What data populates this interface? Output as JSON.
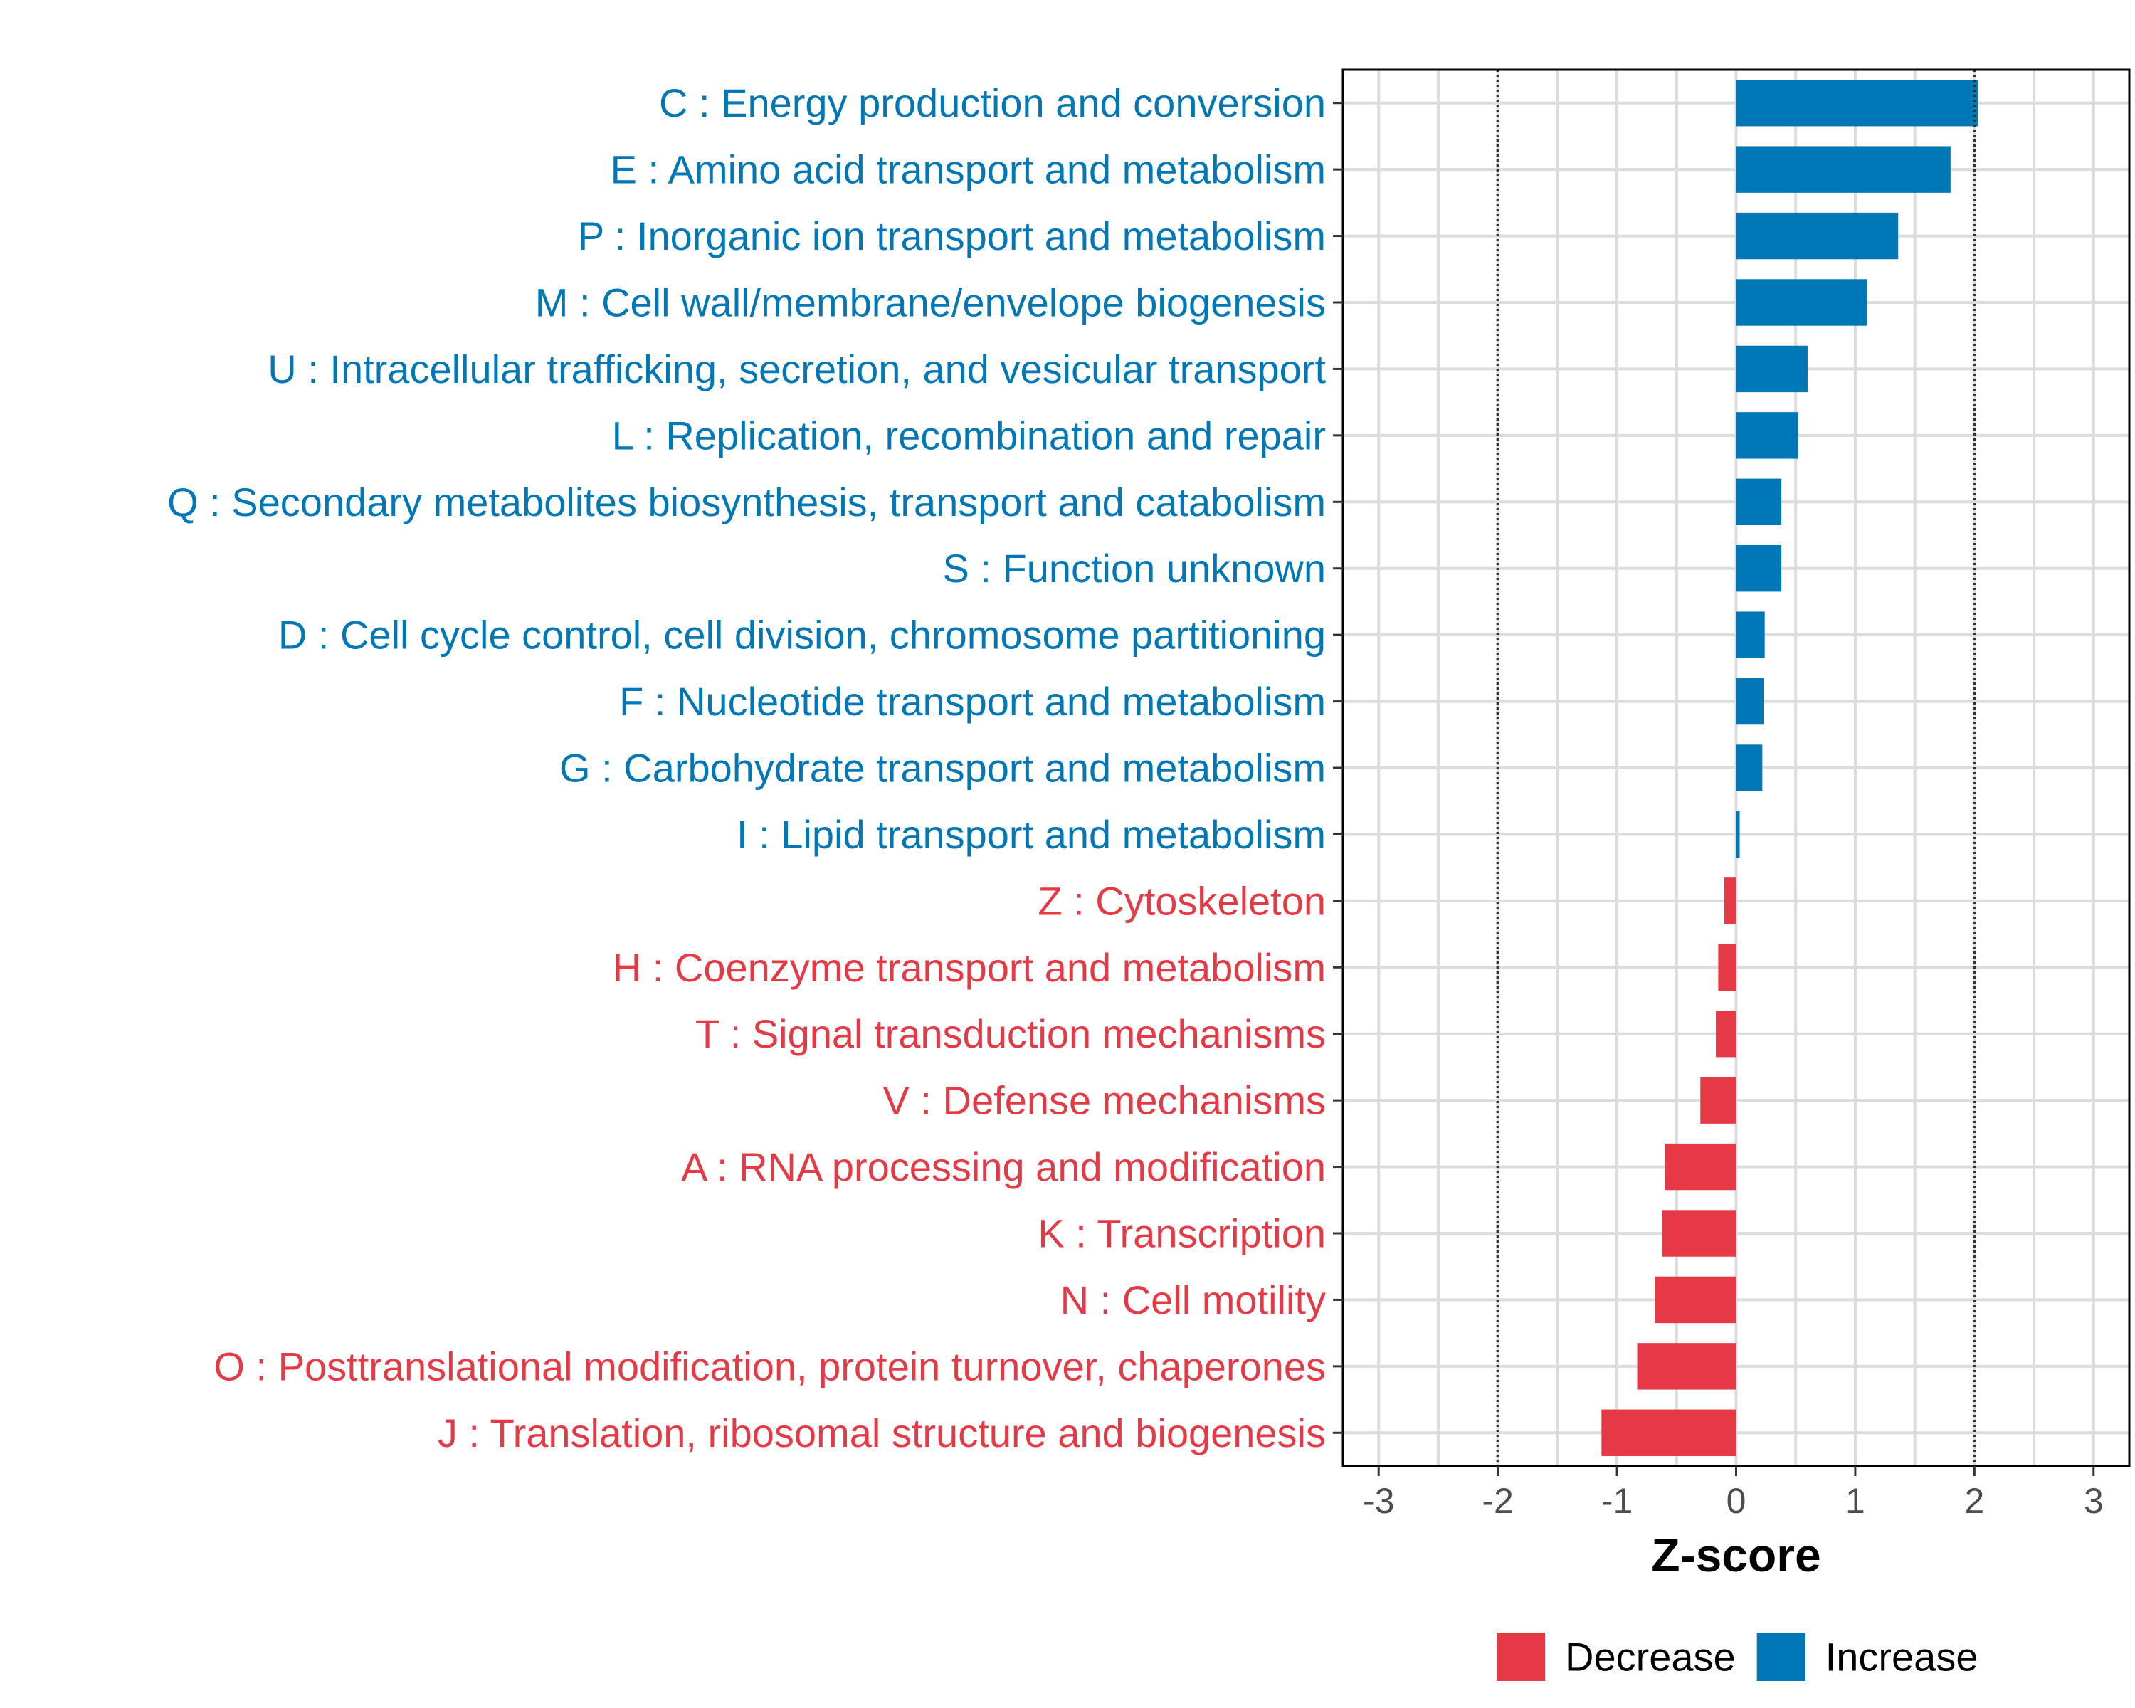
{
  "chart_data": {
    "type": "bar",
    "orientation": "horizontal",
    "xlabel": "Z-score",
    "ylabel": "",
    "xlim": [
      -3.3,
      3.3
    ],
    "xticks": [
      -3,
      -2,
      -1,
      0,
      1,
      2,
      3
    ],
    "threshold_lines": [
      -2,
      2
    ],
    "grid": true,
    "legend": {
      "position": "bottom-right",
      "entries": [
        {
          "key": "decrease",
          "label": "Decrease",
          "color": "#E63946"
        },
        {
          "key": "increase",
          "label": "Increase",
          "color": "#0077B6"
        }
      ]
    },
    "categories": [
      {
        "label": "C : Energy production and conversion",
        "value": 2.03,
        "group": "increase"
      },
      {
        "label": "E : Amino acid transport and metabolism",
        "value": 1.8,
        "group": "increase"
      },
      {
        "label": "P : Inorganic ion transport and metabolism",
        "value": 1.36,
        "group": "increase"
      },
      {
        "label": "M : Cell wall/membrane/envelope biogenesis",
        "value": 1.1,
        "group": "increase"
      },
      {
        "label": "U : Intracellular trafficking, secretion, and vesicular transport",
        "value": 0.6,
        "group": "increase"
      },
      {
        "label": "L : Replication, recombination and repair",
        "value": 0.52,
        "group": "increase"
      },
      {
        "label": "Q : Secondary metabolites biosynthesis, transport and catabolism",
        "value": 0.38,
        "group": "increase"
      },
      {
        "label": "S : Function unknown",
        "value": 0.38,
        "group": "increase"
      },
      {
        "label": "D : Cell cycle control, cell division, chromosome partitioning",
        "value": 0.24,
        "group": "increase"
      },
      {
        "label": "F : Nucleotide transport and metabolism",
        "value": 0.23,
        "group": "increase"
      },
      {
        "label": "G : Carbohydrate transport and metabolism",
        "value": 0.22,
        "group": "increase"
      },
      {
        "label": "I : Lipid transport and metabolism",
        "value": 0.03,
        "group": "increase"
      },
      {
        "label": "Z : Cytoskeleton",
        "value": -0.1,
        "group": "decrease"
      },
      {
        "label": "H : Coenzyme transport and metabolism",
        "value": -0.15,
        "group": "decrease"
      },
      {
        "label": "T : Signal transduction mechanisms",
        "value": -0.17,
        "group": "decrease"
      },
      {
        "label": "V : Defense mechanisms",
        "value": -0.3,
        "group": "decrease"
      },
      {
        "label": "A : RNA processing and modification",
        "value": -0.6,
        "group": "decrease"
      },
      {
        "label": "K : Transcription",
        "value": -0.62,
        "group": "decrease"
      },
      {
        "label": "N : Cell motility",
        "value": -0.68,
        "group": "decrease"
      },
      {
        "label": "O : Posttranslational modification, protein turnover, chaperones",
        "value": -0.83,
        "group": "decrease"
      },
      {
        "label": "J : Translation, ribosomal structure and biogenesis",
        "value": -1.13,
        "group": "decrease"
      }
    ]
  }
}
